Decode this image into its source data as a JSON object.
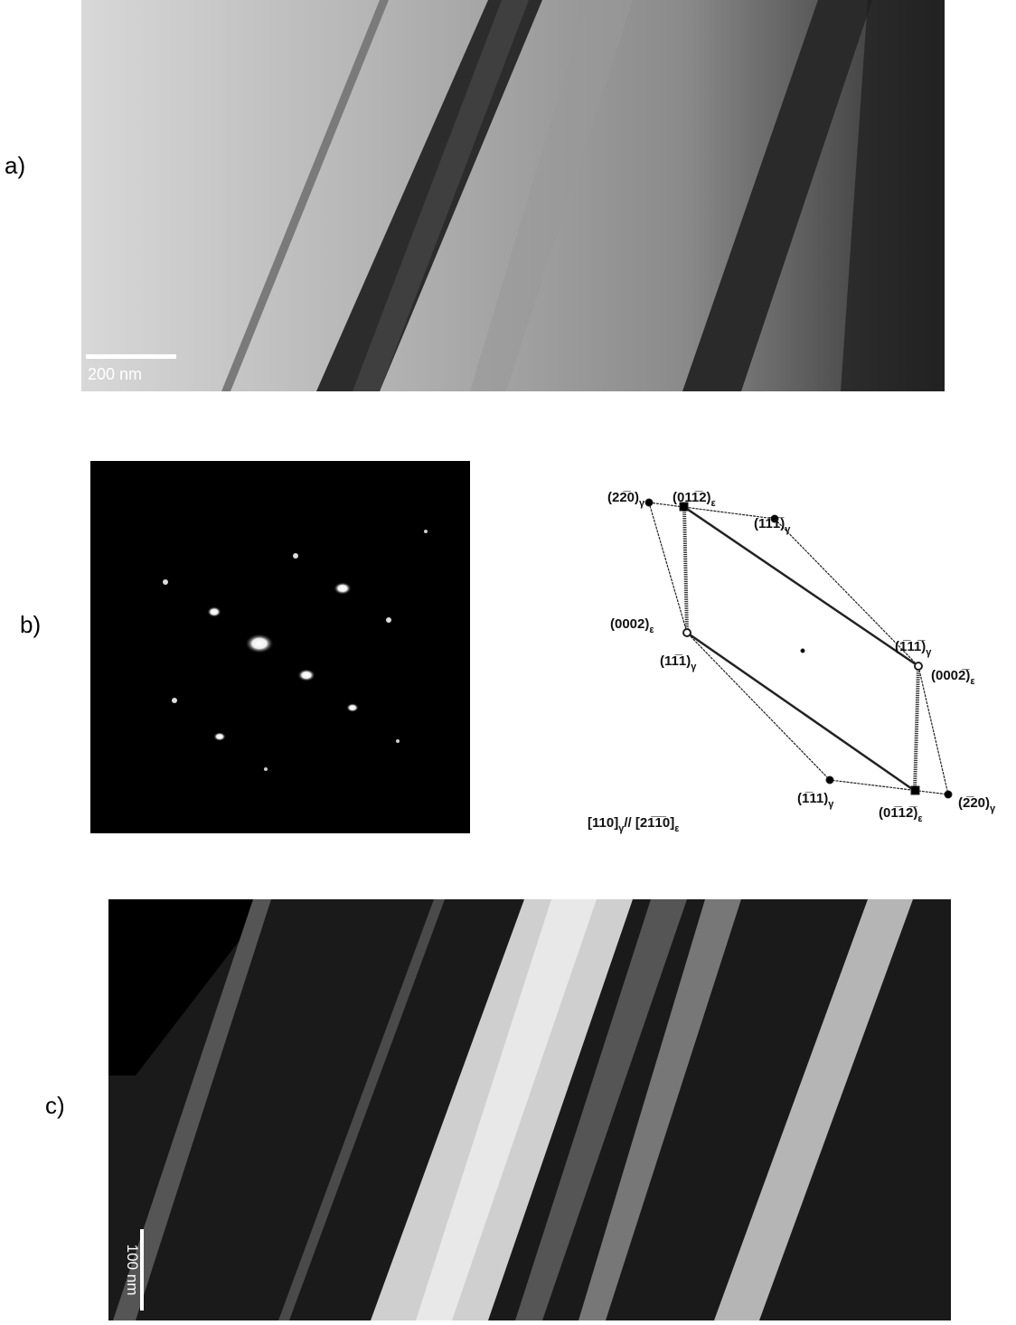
{
  "panels": [
    {
      "label": "a)",
      "scale_bar": "200 nm"
    },
    {
      "label": "b)"
    },
    {
      "label": "c)",
      "scale_bar": "100 nm"
    }
  ],
  "diagram": {
    "spots": [
      {
        "text": "(22̅0)",
        "sub": "γ"
      },
      {
        "text": "(011̅2)",
        "sub": "ε"
      },
      {
        "text": "(11̅1̅)",
        "sub": "γ"
      },
      {
        "text": "(0002)",
        "sub": "ε"
      },
      {
        "text": "(11̅1)",
        "sub": "γ"
      },
      {
        "text": "(1̅11̅)",
        "sub": "γ"
      },
      {
        "text": "(0002̅)",
        "sub": "ε"
      },
      {
        "text": "(1̅11)",
        "sub": "γ"
      },
      {
        "text": "(01̅12̅)",
        "sub": "ε"
      },
      {
        "text": "(2̅20)",
        "sub": "γ"
      }
    ],
    "zone_axis": [
      {
        "text": "[110]",
        "sub": "γ"
      },
      {
        "text": "// [21̅1̅0]",
        "sub": "ε"
      }
    ]
  }
}
